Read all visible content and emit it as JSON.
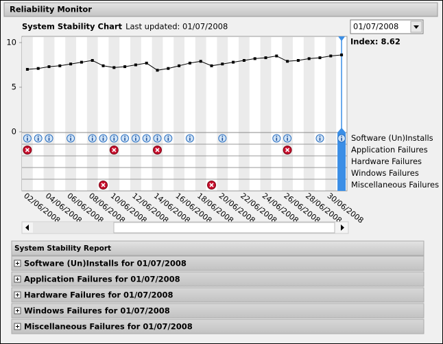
{
  "window": {
    "title": "Reliability Monitor"
  },
  "chart": {
    "type": "line",
    "title": "System Stability Chart",
    "last_updated": "Last updated: 01/07/2008",
    "date_picker": "01/07/2008",
    "index_label": "Index: 8.62",
    "color": "#000000",
    "categories": [
      "02/06/2008",
      null,
      "04/06/2008",
      null,
      "06/06/2008",
      null,
      "08/06/2008",
      null,
      "10/06/2008",
      null,
      "12/06/2008",
      null,
      "14/06/2008",
      null,
      "16/06/2008",
      null,
      "18/06/2008",
      null,
      "20/06/2008",
      null,
      "22/06/2008",
      null,
      "24/06/2008",
      null,
      "26/06/2008",
      null,
      "28/06/2008",
      null,
      "30/06/2008",
      null
    ],
    "values": [
      7.0,
      7.1,
      7.3,
      7.4,
      7.6,
      7.8,
      8.0,
      7.4,
      7.2,
      7.3,
      7.5,
      7.7,
      6.9,
      7.1,
      7.4,
      7.7,
      7.9,
      7.4,
      7.6,
      7.8,
      8.0,
      8.2,
      8.3,
      8.5,
      7.9,
      8.0,
      8.2,
      8.3,
      8.5,
      8.62
    ],
    "ylim": [
      0,
      10
    ],
    "yticks": [
      0,
      5,
      10
    ],
    "event_rows": [
      {
        "name": "Software (Un)Installs",
        "kind": "info",
        "counts": [
          1,
          1,
          1,
          0,
          1,
          0,
          1,
          1,
          1,
          1,
          1,
          1,
          1,
          1,
          0,
          1,
          0,
          0,
          1,
          0,
          0,
          0,
          0,
          1,
          1,
          0,
          0,
          1,
          0,
          1
        ]
      },
      {
        "name": "Application Failures",
        "kind": "error",
        "counts": [
          1,
          0,
          0,
          0,
          0,
          0,
          0,
          0,
          1,
          0,
          0,
          0,
          1,
          0,
          0,
          0,
          0,
          0,
          0,
          0,
          0,
          0,
          0,
          0,
          1,
          0,
          0,
          0,
          0,
          0
        ]
      },
      {
        "name": "Hardware Failures",
        "kind": "error",
        "counts": [
          0,
          0,
          0,
          0,
          0,
          0,
          0,
          0,
          0,
          0,
          0,
          0,
          0,
          0,
          0,
          0,
          0,
          0,
          0,
          0,
          0,
          0,
          0,
          0,
          0,
          0,
          0,
          0,
          0,
          0
        ]
      },
      {
        "name": "Windows Failures",
        "kind": "error",
        "counts": [
          0,
          0,
          0,
          0,
          0,
          0,
          0,
          0,
          0,
          0,
          0,
          0,
          0,
          0,
          0,
          0,
          0,
          0,
          0,
          0,
          0,
          0,
          0,
          0,
          0,
          0,
          0,
          0,
          0,
          0
        ]
      },
      {
        "name": "Miscellaneous Failures",
        "kind": "error",
        "counts": [
          0,
          0,
          0,
          0,
          0,
          0,
          0,
          1,
          0,
          0,
          0,
          0,
          0,
          0,
          0,
          0,
          0,
          1,
          0,
          0,
          0,
          0,
          0,
          0,
          0,
          0,
          0,
          0,
          0,
          0
        ]
      }
    ]
  },
  "report": {
    "title": "System Stability Report",
    "rows": [
      "Software (Un)Installs for 01/07/2008",
      "Application Failures for 01/07/2008",
      "Hardware Failures for 01/07/2008",
      "Windows Failures for 01/07/2008",
      "Miscellaneous Failures for 01/07/2008"
    ]
  }
}
